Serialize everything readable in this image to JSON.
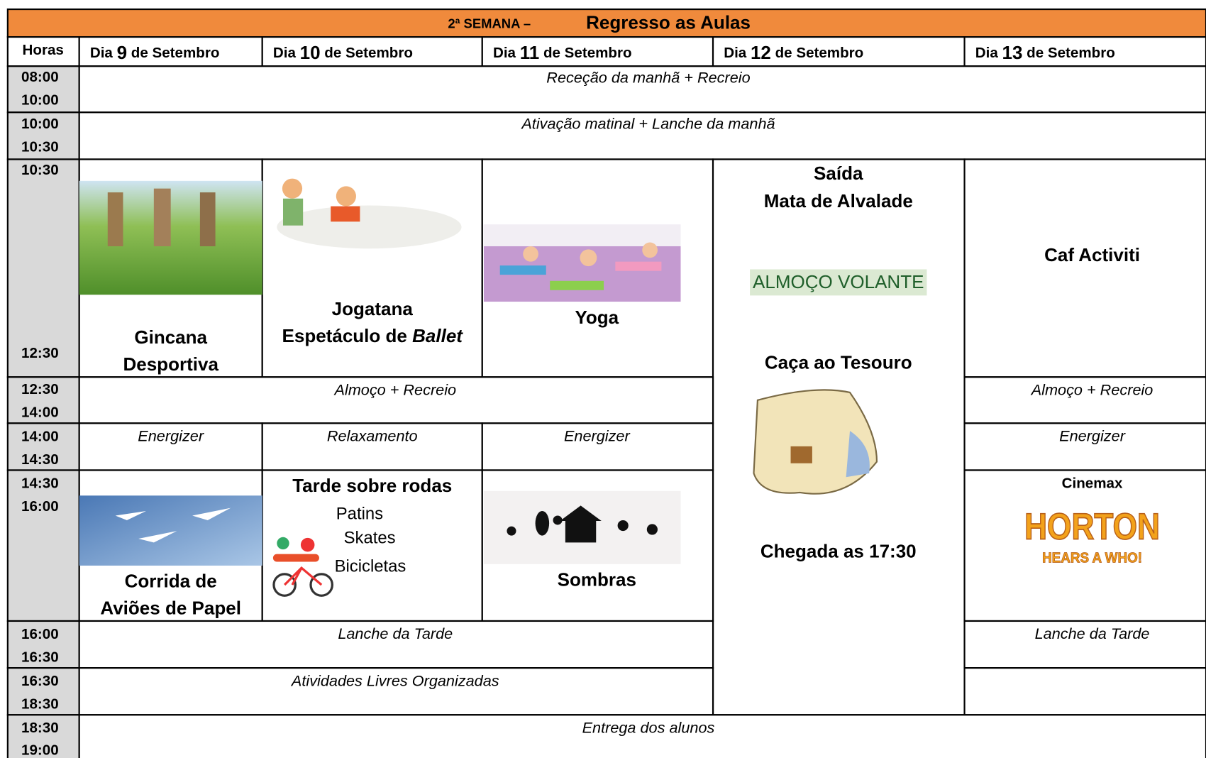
{
  "header": {
    "prefix": "2ª SEMANA –",
    "title": "Regresso as Aulas"
  },
  "columns": {
    "hours": "Horas",
    "days": [
      {
        "dia": "Dia",
        "num": "9",
        "mes": "de Setembro"
      },
      {
        "dia": "Dia",
        "num": "10",
        "mes": "de Setembro"
      },
      {
        "dia": "Dia",
        "num": "11",
        "mes": "de Setembro"
      },
      {
        "dia": "Dia",
        "num": "12",
        "mes": "de Setembro"
      },
      {
        "dia": "Dia",
        "num": "13",
        "mes": "de Setembro"
      }
    ]
  },
  "times": [
    [
      "08:00",
      "10:00"
    ],
    [
      "10:00",
      "10:30"
    ],
    [
      "10:30",
      "12:30"
    ],
    [
      "12:30",
      "14:00"
    ],
    [
      "14:00",
      "14:30"
    ],
    [
      "14:30",
      "16:00"
    ],
    [
      "16:00",
      "16:30"
    ],
    [
      "16:30",
      "18:30"
    ],
    [
      "18:30",
      "19:00"
    ]
  ],
  "reception": "Receção da manhã + Recreio",
  "activation": "Ativação matinal + Lanche da manhã",
  "morning": {
    "d9": [
      "Gincana",
      "Desportiva"
    ],
    "d10": {
      "line1": "Jogatana",
      "line2": "Espetáculo de",
      "line2_italic": "Ballet"
    },
    "d11": "Yoga",
    "d13": "Caf Activiti"
  },
  "day12": {
    "lines": [
      "Saída",
      "Mata de Alvalade"
    ],
    "lunch": "ALMOÇO VOLANTE",
    "hunt": "Caça ao Tesouro",
    "return": "Chegada as 17:30"
  },
  "lunch": [
    "Almoço + Recreio",
    "Almoço + Recreio"
  ],
  "warmup": [
    "Energizer",
    "Relaxamento",
    "Energizer",
    "Energizer"
  ],
  "afternoon": {
    "d9": [
      "Corrida de",
      "Aviões de Papel"
    ],
    "d10": {
      "title": "Tarde sobre rodas",
      "items": [
        "Patins",
        "Skates",
        "Bicicletas"
      ]
    },
    "d11": "Sombras",
    "d13": {
      "title": "Cinemax",
      "film": "HORTON",
      "film_sub": "HEARS A WHO!"
    }
  },
  "snack": [
    "Lanche da Tarde",
    "Lanche da Tarde"
  ],
  "free": "Atividades Livres Organizadas",
  "pickup": "Entrega dos alunos"
}
